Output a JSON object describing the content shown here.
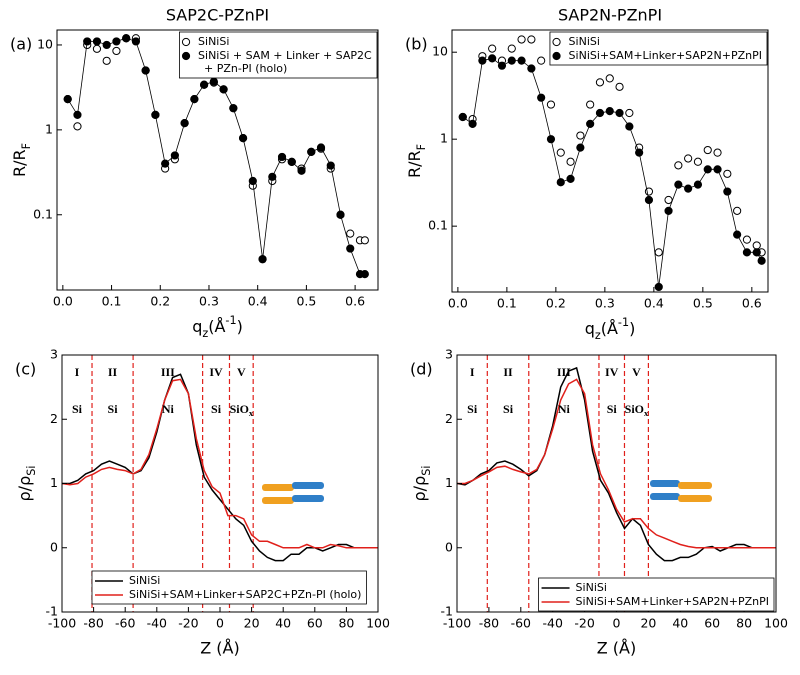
{
  "chart_data": [
    {
      "type": "scatter",
      "panel": "(a)",
      "title": "SAP2C-PZnPI",
      "x_label": [
        {
          "text": "q"
        },
        {
          "sub": "z"
        },
        {
          "text": "(Å"
        },
        {
          "sup": "-1"
        },
        {
          "text": ")"
        }
      ],
      "y_label": [
        {
          "text": "R/R"
        },
        {
          "sub": "F"
        }
      ],
      "log_y": true,
      "xlim": [
        -0.012,
        0.647
      ],
      "ylim": [
        0.013,
        15
      ],
      "xticks": [
        {
          "value": 0,
          "label": "0.0"
        },
        0.1,
        0.2,
        0.3,
        0.4,
        0.5,
        0.6
      ],
      "yticks": [
        0.1,
        1,
        10
      ],
      "legend": "upper right",
      "x": [
        0.01,
        0.03,
        0.05,
        0.07,
        0.09,
        0.11,
        0.13,
        0.15,
        0.17,
        0.19,
        0.21,
        0.23,
        0.25,
        0.27,
        0.29,
        0.31,
        0.33,
        0.35,
        0.37,
        0.39,
        0.41,
        0.43,
        0.45,
        0.47,
        0.49,
        0.51,
        0.53,
        0.55,
        0.57,
        0.59,
        0.61,
        0.62
      ],
      "series": [
        {
          "name": "SiNiSi",
          "marker": "open",
          "color": "#000000",
          "values": [
            2.3,
            1.1,
            10,
            9,
            6.5,
            8.5,
            12,
            12,
            5,
            1.5,
            0.35,
            0.45,
            1.2,
            2.3,
            3.4,
            3.6,
            3.0,
            1.8,
            0.8,
            0.22,
            0.03,
            0.25,
            0.45,
            0.42,
            0.35,
            0.55,
            0.6,
            0.35,
            0.1,
            0.06,
            0.05,
            0.05
          ]
        },
        {
          "name": [
            "SiNiSi + SAM + Linker + SAP2C",
            "+ PZn-PI (holo)"
          ],
          "marker": "filled",
          "color": "#000000",
          "line": true,
          "values": [
            2.3,
            1.5,
            11,
            11,
            10,
            11,
            12,
            11,
            5,
            1.5,
            0.4,
            0.5,
            1.2,
            2.3,
            3.4,
            3.7,
            3.0,
            1.8,
            0.8,
            0.25,
            0.03,
            0.28,
            0.48,
            0.42,
            0.33,
            0.55,
            0.62,
            0.38,
            0.1,
            0.04,
            0.02,
            0.02
          ]
        }
      ]
    },
    {
      "type": "scatter",
      "panel": "(b)",
      "title": "SAP2N-PZnPI",
      "x_label": [
        {
          "text": "q"
        },
        {
          "sub": "z"
        },
        {
          "text": "(Å"
        },
        {
          "sup": "-1"
        },
        {
          "text": ")"
        }
      ],
      "y_label": [
        {
          "text": "R/R"
        },
        {
          "sub": "F"
        }
      ],
      "log_y": true,
      "xlim": [
        -0.012,
        0.633
      ],
      "ylim": [
        0.0175,
        18
      ],
      "xticks": [
        {
          "value": 0,
          "label": "0.0"
        },
        0.1,
        0.2,
        0.3,
        0.4,
        0.5,
        0.6
      ],
      "yticks": [
        0.1,
        1,
        10
      ],
      "legend": "upper right",
      "x": [
        0.01,
        0.03,
        0.05,
        0.07,
        0.09,
        0.11,
        0.13,
        0.15,
        0.17,
        0.19,
        0.21,
        0.23,
        0.25,
        0.27,
        0.29,
        0.31,
        0.33,
        0.35,
        0.37,
        0.39,
        0.41,
        0.43,
        0.45,
        0.47,
        0.49,
        0.51,
        0.53,
        0.55,
        0.57,
        0.59,
        0.61,
        0.62
      ],
      "series": [
        {
          "name": "SiNiSi",
          "marker": "open",
          "color": "#000000",
          "values": [
            1.8,
            1.7,
            9,
            11,
            8,
            11,
            14,
            14,
            8,
            2.5,
            0.7,
            0.55,
            1.1,
            2.5,
            4.5,
            5,
            4,
            2,
            0.8,
            0.25,
            0.05,
            0.2,
            0.5,
            0.6,
            0.55,
            0.75,
            0.7,
            0.4,
            0.15,
            0.07,
            0.06,
            0.05
          ]
        },
        {
          "name": "SiNiSi+SAM+Linker+SAP2N+PZnPI",
          "marker": "filled",
          "color": "#000000",
          "line": true,
          "values": [
            1.8,
            1.5,
            8,
            8.5,
            7,
            8,
            8,
            6.5,
            3,
            1,
            0.32,
            0.35,
            0.8,
            1.5,
            2,
            2.1,
            2,
            1.4,
            0.7,
            0.2,
            0.02,
            0.15,
            0.3,
            0.27,
            0.3,
            0.45,
            0.45,
            0.25,
            0.08,
            0.05,
            0.05,
            0.04
          ]
        }
      ]
    },
    {
      "type": "line",
      "panel": "(c)",
      "x_label": "Z (Å)",
      "y_label": [
        {
          "text": "ρ/ρ"
        },
        {
          "sub": "Si"
        }
      ],
      "xlim": [
        -100,
        100
      ],
      "ylim": [
        -1,
        3
      ],
      "xticks": [
        -100,
        -80,
        -60,
        -40,
        -20,
        0,
        20,
        40,
        60,
        80,
        100
      ],
      "yticks": [
        -1,
        0,
        1,
        2,
        3
      ],
      "vlines": [
        -81,
        -55,
        -11,
        6,
        21
      ],
      "vline_color": "#e0201b",
      "regions": [
        {
          "roman": "I",
          "material": "Si"
        },
        {
          "roman": "II",
          "material": "Si"
        },
        {
          "roman": "III",
          "material": "Ni"
        },
        {
          "roman": "IV",
          "material": "Si"
        },
        {
          "roman": "V",
          "material": "SiO",
          "sub": "x"
        }
      ],
      "legend": "lower left",
      "x": [
        -100,
        -95,
        -90,
        -85,
        -80,
        -75,
        -70,
        -65,
        -60,
        -55,
        -50,
        -45,
        -40,
        -35,
        -30,
        -25,
        -20,
        -15,
        -10,
        -5,
        0,
        5,
        10,
        15,
        20,
        25,
        30,
        35,
        40,
        45,
        50,
        55,
        60,
        65,
        70,
        75,
        80,
        85,
        90,
        95,
        100
      ],
      "series": [
        {
          "name": "SiNiSi",
          "color": "#000000",
          "values": [
            1.0,
            1.0,
            1.05,
            1.15,
            1.2,
            1.3,
            1.35,
            1.3,
            1.25,
            1.15,
            1.2,
            1.4,
            1.8,
            2.3,
            2.65,
            2.7,
            2.4,
            1.6,
            1.1,
            0.9,
            0.75,
            0.6,
            0.45,
            0.35,
            0.1,
            -0.05,
            -0.15,
            -0.2,
            -0.2,
            -0.1,
            -0.1,
            0.0,
            0.0,
            -0.05,
            0.0,
            0.05,
            0.05,
            0.0,
            0.0,
            0.0,
            0.0
          ]
        },
        {
          "name": "SiNiSi+SAM+Linker+SAP2C+PZn-PI (holo)",
          "color": "#e0201b",
          "values": [
            1.0,
            0.98,
            1.0,
            1.1,
            1.15,
            1.22,
            1.25,
            1.22,
            1.2,
            1.15,
            1.22,
            1.45,
            1.85,
            2.3,
            2.6,
            2.62,
            2.4,
            1.7,
            1.2,
            0.95,
            0.85,
            0.5,
            0.5,
            0.45,
            0.2,
            0.1,
            0.1,
            0.05,
            0.0,
            0.0,
            0.0,
            0.05,
            0.0,
            0.0,
            0.05,
            0.03,
            0.0,
            0.0,
            0.0,
            0.0,
            0.0
          ]
        }
      ]
    },
    {
      "type": "line",
      "panel": "(d)",
      "x_label": "Z (Å)",
      "y_label": [
        {
          "text": "ρ/ρ"
        },
        {
          "sub": "Si"
        }
      ],
      "xlim": [
        -100,
        100
      ],
      "ylim": [
        -1,
        3
      ],
      "xticks": [
        -100,
        -80,
        -60,
        -40,
        -20,
        0,
        20,
        40,
        60,
        80,
        100
      ],
      "yticks": [
        -1,
        0,
        1,
        2,
        3
      ],
      "vlines": [
        -81,
        -55,
        -11,
        5,
        20
      ],
      "vline_color": "#e0201b",
      "regions": [
        {
          "roman": "I",
          "material": "Si"
        },
        {
          "roman": "II",
          "material": "Si"
        },
        {
          "roman": "III",
          "material": "Ni"
        },
        {
          "roman": "IV",
          "material": "Si"
        },
        {
          "roman": "V",
          "material": "SiO",
          "sub": "x"
        }
      ],
      "legend": "lower right",
      "x": [
        -100,
        -95,
        -90,
        -85,
        -80,
        -75,
        -70,
        -65,
        -60,
        -55,
        -50,
        -45,
        -40,
        -35,
        -30,
        -25,
        -20,
        -15,
        -10,
        -5,
        0,
        5,
        10,
        15,
        20,
        25,
        30,
        35,
        40,
        45,
        50,
        55,
        60,
        65,
        70,
        75,
        80,
        85,
        90,
        95,
        100
      ],
      "series": [
        {
          "name": "SiNiSi",
          "color": "#000000",
          "values": [
            1.0,
            0.98,
            1.05,
            1.15,
            1.2,
            1.32,
            1.35,
            1.3,
            1.22,
            1.12,
            1.2,
            1.45,
            1.9,
            2.5,
            2.75,
            2.8,
            2.3,
            1.5,
            1.05,
            0.85,
            0.55,
            0.3,
            0.45,
            0.35,
            0.05,
            -0.1,
            -0.2,
            -0.2,
            -0.15,
            -0.15,
            -0.1,
            0.0,
            0.02,
            -0.05,
            0.0,
            0.05,
            0.05,
            0.0,
            0.0,
            0.0,
            0.0
          ]
        },
        {
          "name": "SiNiSi+SAM+Linker+SAP2N+PZnPI",
          "color": "#e0201b",
          "values": [
            1.0,
            1.0,
            1.05,
            1.12,
            1.18,
            1.25,
            1.27,
            1.22,
            1.18,
            1.15,
            1.22,
            1.45,
            1.85,
            2.3,
            2.55,
            2.62,
            2.4,
            1.6,
            1.15,
            0.9,
            0.6,
            0.4,
            0.45,
            0.45,
            0.3,
            0.2,
            0.15,
            0.1,
            0.05,
            0.02,
            0.0,
            0.0,
            0.0,
            0.0,
            0.0,
            0.0,
            0.0,
            0.0,
            0.0,
            0.0,
            0.0
          ]
        }
      ]
    }
  ]
}
